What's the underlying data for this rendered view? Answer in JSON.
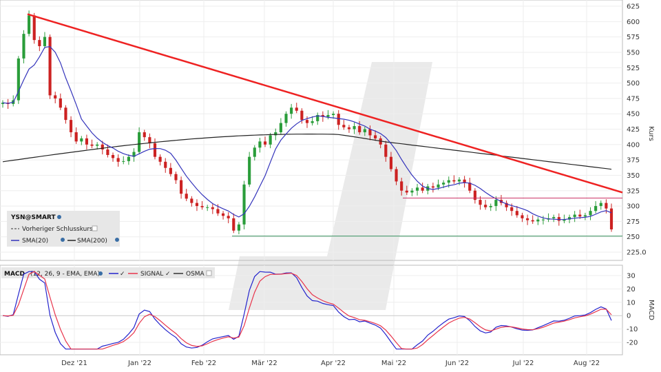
{
  "chart_data": [
    {
      "type": "candlestick",
      "ylabel": "Kurs",
      "ylim": [
        205,
        630
      ],
      "yticks": [
        "625",
        "600",
        "575",
        "550",
        "525",
        "500",
        "475",
        "450",
        "425",
        "400",
        "375",
        "350",
        "325",
        "300",
        "275",
        "250",
        "225.0"
      ],
      "x_ticks": [
        "Dez '21",
        "Jan '22",
        "Feb '22",
        "Mär '22",
        "Apr '22",
        "Mai '22",
        "Jun '22",
        "Jul '22",
        "Aug '22"
      ],
      "legend": {
        "symbol": "YSN@SMART",
        "prev_close": "Vorheriger Schlusskurs",
        "sma20": "SMA(20)",
        "sma200": "SMA(200)"
      },
      "levels": {
        "resistance_line": 313,
        "support_line": 251
      },
      "trendline": {
        "from": {
          "x": 6,
          "y": 612
        },
        "to": {
          "x": 186,
          "y": 322
        }
      },
      "close": [
        468,
        466,
        472,
        540,
        580,
        610,
        570,
        560,
        575,
        480,
        475,
        460,
        440,
        420,
        405,
        410,
        400,
        398,
        400,
        392,
        383,
        378,
        372,
        373,
        380,
        388,
        420,
        412,
        402,
        380,
        372,
        362,
        352,
        342,
        320,
        312,
        305,
        300,
        298,
        298,
        295,
        288,
        284,
        280,
        260,
        270,
        335,
        380,
        395,
        405,
        400,
        415,
        420,
        435,
        450,
        460,
        455,
        440,
        435,
        438,
        448,
        445,
        448,
        450,
        432,
        428,
        425,
        430,
        420,
        425,
        415,
        410,
        400,
        380,
        360,
        340,
        325,
        322,
        325,
        330,
        325,
        332,
        330,
        335,
        338,
        342,
        340,
        343,
        338,
        325,
        310,
        302,
        298,
        300,
        310,
        305,
        298,
        292,
        285,
        280,
        277,
        275,
        278,
        278,
        280,
        282,
        276,
        278,
        282,
        286,
        283,
        285,
        292,
        300,
        305,
        296,
        262
      ],
      "x_count": 117,
      "sma20_note": "derived",
      "sma200_note": "derived"
    },
    {
      "type": "line",
      "title": "MACD",
      "params": "(12, 26, 9 - EMA, EMA)",
      "ylabel": "MACD",
      "ylim": [
        -27,
        36
      ],
      "yticks": [
        "30",
        "20",
        "10",
        "0",
        "-10",
        "-20"
      ],
      "series": [
        {
          "name": "MACD",
          "color": "#2222cc"
        },
        {
          "name": "SIGNAL",
          "color": "#e8334a"
        },
        {
          "name": "OSMA",
          "color": "#333333"
        }
      ]
    }
  ]
}
